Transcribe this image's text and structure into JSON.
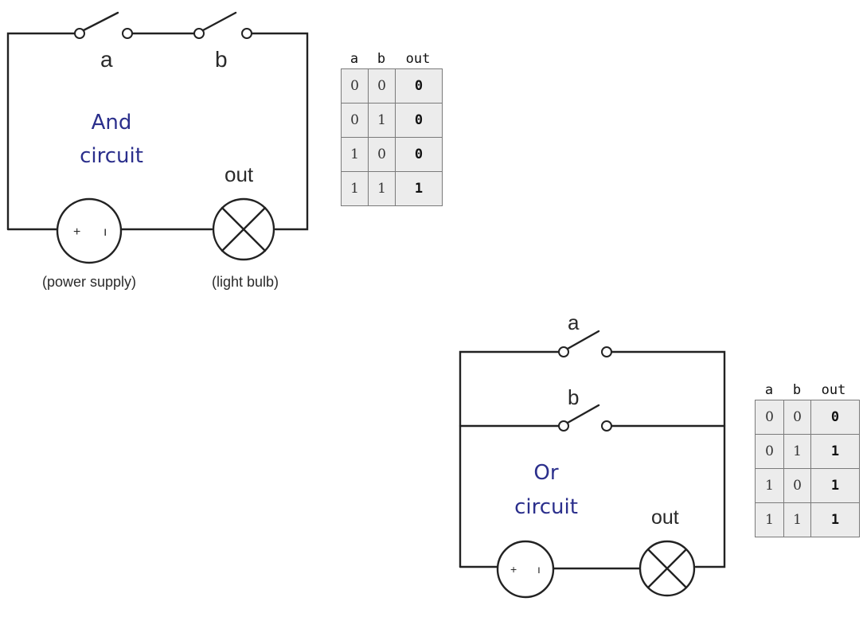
{
  "and_circuit": {
    "switch_a_label": "a",
    "switch_b_label": "b",
    "title_line1": "And",
    "title_line2": "circuit",
    "out_label": "out",
    "supply_plus": "+",
    "supply_minus": "ı",
    "supply_caption": "(power supply)",
    "bulb_caption": "(light bulb)"
  },
  "or_circuit": {
    "switch_a_label": "a",
    "switch_b_label": "b",
    "title_line1": "Or",
    "title_line2": "circuit",
    "out_label": "out",
    "supply_plus": "+",
    "supply_minus": "ı"
  },
  "and_table": {
    "headers": [
      "a",
      "b",
      "out"
    ],
    "rows": [
      [
        "0",
        "0",
        "0"
      ],
      [
        "0",
        "1",
        "0"
      ],
      [
        "1",
        "0",
        "0"
      ],
      [
        "1",
        "1",
        "1"
      ]
    ]
  },
  "or_table": {
    "headers": [
      "a",
      "b",
      "out"
    ],
    "rows": [
      [
        "0",
        "0",
        "0"
      ],
      [
        "0",
        "1",
        "1"
      ],
      [
        "1",
        "0",
        "1"
      ],
      [
        "1",
        "1",
        "1"
      ]
    ]
  }
}
